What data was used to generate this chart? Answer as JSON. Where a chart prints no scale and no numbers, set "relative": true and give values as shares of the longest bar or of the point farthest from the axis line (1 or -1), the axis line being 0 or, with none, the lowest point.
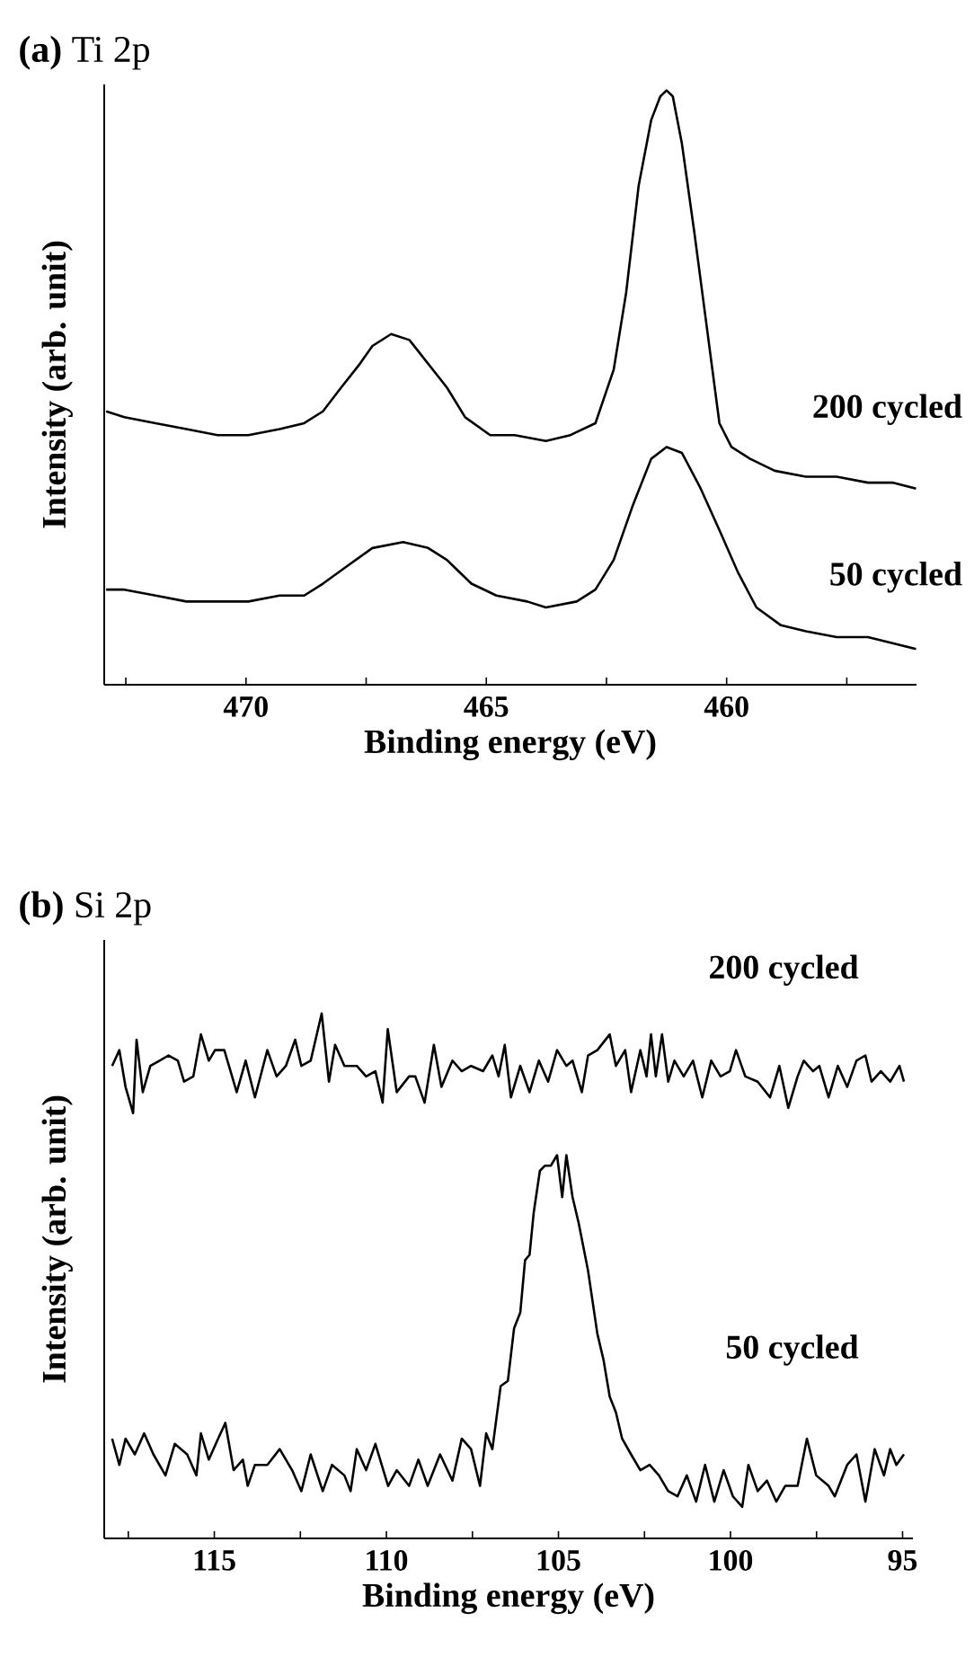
{
  "chart_data": [
    {
      "type": "line",
      "title": "**(a)** Ti 2p",
      "xlabel": "Binding energy (eV)",
      "ylabel": "Intensity (arb. unit)",
      "relative": true,
      "xlim": [
        472.95,
        456.05
      ],
      "xticks": [
        {
          "value": 472.5,
          "label": null
        },
        470,
        {
          "value": 467.5,
          "label": null
        },
        465,
        {
          "value": 462.5,
          "label": null
        },
        460,
        {
          "value": 457.5,
          "label": null
        }
      ],
      "series": [
        {
          "name": "200 cycled",
          "color": "#000000",
          "x": [
            472.91,
            472.53,
            471.88,
            471.24,
            470.59,
            469.95,
            469.3,
            468.79,
            468.4,
            468.02,
            467.63,
            467.37,
            466.98,
            466.6,
            466.21,
            465.82,
            465.44,
            464.92,
            464.41,
            463.76,
            463.25,
            462.73,
            462.35,
            462.09,
            461.83,
            461.57,
            461.38,
            461.25,
            461.12,
            460.93,
            460.67,
            460.41,
            460.15,
            459.9,
            459.51,
            459.0,
            458.35,
            457.71,
            457.06,
            456.55,
            456.06
          ],
          "values": [
            0.46,
            0.45,
            0.44,
            0.43,
            0.42,
            0.42,
            0.43,
            0.44,
            0.46,
            0.5,
            0.54,
            0.57,
            0.59,
            0.58,
            0.54,
            0.5,
            0.45,
            0.42,
            0.42,
            0.41,
            0.42,
            0.44,
            0.53,
            0.66,
            0.84,
            0.95,
            0.99,
            1.0,
            0.99,
            0.91,
            0.76,
            0.6,
            0.44,
            0.4,
            0.38,
            0.36,
            0.35,
            0.35,
            0.34,
            0.34,
            0.33
          ]
        },
        {
          "name": "50 cycled",
          "color": "#000000",
          "x": [
            472.91,
            472.53,
            471.88,
            471.24,
            470.59,
            469.95,
            469.3,
            468.79,
            468.4,
            467.89,
            467.37,
            466.73,
            466.21,
            465.82,
            465.31,
            464.79,
            464.15,
            463.76,
            463.12,
            462.73,
            462.35,
            461.96,
            461.57,
            461.25,
            460.93,
            460.54,
            460.15,
            459.77,
            459.38,
            458.87,
            458.35,
            457.71,
            457.06,
            456.55,
            456.06
          ],
          "values": [
            0.16,
            0.16,
            0.15,
            0.14,
            0.14,
            0.14,
            0.15,
            0.15,
            0.17,
            0.2,
            0.23,
            0.24,
            0.23,
            0.21,
            0.17,
            0.15,
            0.14,
            0.13,
            0.14,
            0.16,
            0.21,
            0.3,
            0.38,
            0.4,
            0.39,
            0.33,
            0.26,
            0.19,
            0.13,
            0.1,
            0.09,
            0.08,
            0.08,
            0.07,
            0.06
          ]
        }
      ]
    },
    {
      "type": "line",
      "title": "**(b)** Si 2p",
      "xlabel": "Binding energy (eV)",
      "ylabel": "Intensity (arb. unit)",
      "relative": true,
      "xlim": [
        118.2,
        94.7
      ],
      "xticks": [
        {
          "value": 117.5,
          "label": null
        },
        115,
        {
          "value": 112.5,
          "label": null
        },
        110,
        {
          "value": 107.5,
          "label": null
        },
        105,
        {
          "value": 102.5,
          "label": null
        },
        100,
        {
          "value": 97.5,
          "label": null
        },
        95
      ],
      "series": [
        {
          "name": "200 cycled",
          "color": "#000000",
          "x": [
            117.97,
            117.76,
            117.58,
            117.36,
            117.26,
            117.08,
            116.86,
            116.59,
            116.33,
            116.06,
            115.88,
            115.61,
            115.39,
            115.16,
            114.98,
            114.71,
            114.35,
            114.09,
            113.82,
            113.46,
            113.19,
            112.92,
            112.65,
            112.47,
            112.2,
            111.88,
            111.67,
            111.49,
            111.22,
            110.86,
            110.59,
            110.32,
            110.11,
            109.96,
            109.7,
            109.34,
            109.16,
            108.89,
            108.62,
            108.4,
            108.08,
            107.81,
            107.54,
            107.19,
            106.92,
            106.74,
            106.56,
            106.38,
            106.11,
            105.84,
            105.57,
            105.3,
            105.04,
            104.77,
            104.59,
            104.32,
            104.14,
            103.87,
            103.51,
            103.33,
            103.06,
            102.89,
            102.62,
            102.44,
            102.31,
            102.17,
            101.99,
            101.81,
            101.63,
            101.36,
            101.09,
            100.82,
            100.56,
            100.29,
            100.02,
            99.84,
            99.57,
            99.21,
            98.85,
            98.58,
            98.32,
            98.05,
            97.87,
            97.6,
            97.42,
            97.15,
            96.88,
            96.61,
            96.34,
            96.08,
            95.9,
            95.63,
            95.36,
            95.09,
            94.96
          ],
          "values": [
            0.9,
            0.93,
            0.86,
            0.81,
            0.95,
            0.85,
            0.9,
            0.91,
            0.92,
            0.91,
            0.87,
            0.88,
            0.96,
            0.91,
            0.93,
            0.93,
            0.85,
            0.91,
            0.84,
            0.93,
            0.88,
            0.9,
            0.95,
            0.9,
            0.91,
            1.0,
            0.87,
            0.94,
            0.9,
            0.9,
            0.88,
            0.89,
            0.83,
            0.97,
            0.85,
            0.88,
            0.88,
            0.83,
            0.94,
            0.86,
            0.91,
            0.89,
            0.9,
            0.89,
            0.92,
            0.88,
            0.94,
            0.84,
            0.9,
            0.85,
            0.91,
            0.87,
            0.93,
            0.9,
            0.91,
            0.85,
            0.92,
            0.93,
            0.96,
            0.9,
            0.93,
            0.85,
            0.93,
            0.88,
            0.96,
            0.88,
            0.96,
            0.87,
            0.91,
            0.88,
            0.91,
            0.84,
            0.91,
            0.88,
            0.89,
            0.93,
            0.88,
            0.87,
            0.84,
            0.9,
            0.82,
            0.88,
            0.91,
            0.89,
            0.9,
            0.84,
            0.9,
            0.86,
            0.91,
            0.92,
            0.87,
            0.89,
            0.87,
            0.9,
            0.87
          ]
        },
        {
          "name": "50 cycled",
          "color": "#000000",
          "x": [
            117.97,
            117.76,
            117.58,
            117.31,
            117.04,
            116.77,
            116.42,
            116.15,
            115.79,
            115.52,
            115.39,
            115.16,
            114.89,
            114.68,
            114.44,
            114.17,
            114.03,
            113.82,
            113.46,
            113.1,
            112.74,
            112.47,
            112.2,
            111.85,
            111.58,
            111.22,
            111.04,
            110.86,
            110.59,
            110.32,
            109.95,
            109.7,
            109.34,
            109.07,
            108.8,
            108.44,
            108.08,
            107.81,
            107.54,
            107.28,
            107.1,
            106.92,
            106.68,
            106.47,
            106.29,
            106.11,
            105.97,
            105.84,
            105.72,
            105.54,
            105.39,
            105.22,
            105.04,
            104.89,
            104.77,
            104.59,
            104.41,
            104.14,
            103.87,
            103.69,
            103.51,
            103.33,
            103.15,
            102.89,
            102.62,
            102.35,
            102.08,
            101.81,
            101.54,
            101.27,
            101.0,
            100.74,
            100.47,
            100.2,
            99.93,
            99.66,
            99.48,
            99.21,
            98.94,
            98.67,
            98.41,
            98.05,
            97.78,
            97.51,
            97.15,
            96.97,
            96.61,
            96.34,
            96.08,
            95.81,
            95.54,
            95.36,
            95.18,
            94.96
          ],
          "values": [
            0.19,
            0.14,
            0.19,
            0.16,
            0.2,
            0.16,
            0.12,
            0.18,
            0.16,
            0.12,
            0.2,
            0.15,
            0.19,
            0.22,
            0.13,
            0.15,
            0.1,
            0.14,
            0.14,
            0.17,
            0.13,
            0.09,
            0.16,
            0.09,
            0.14,
            0.12,
            0.09,
            0.17,
            0.13,
            0.18,
            0.1,
            0.13,
            0.1,
            0.15,
            0.1,
            0.16,
            0.11,
            0.19,
            0.17,
            0.1,
            0.2,
            0.17,
            0.29,
            0.3,
            0.4,
            0.43,
            0.53,
            0.54,
            0.62,
            0.7,
            0.71,
            0.71,
            0.73,
            0.65,
            0.73,
            0.65,
            0.6,
            0.51,
            0.39,
            0.34,
            0.27,
            0.24,
            0.19,
            0.16,
            0.13,
            0.14,
            0.12,
            0.09,
            0.08,
            0.12,
            0.07,
            0.14,
            0.07,
            0.13,
            0.08,
            0.06,
            0.14,
            0.09,
            0.11,
            0.07,
            0.1,
            0.1,
            0.19,
            0.12,
            0.1,
            0.08,
            0.14,
            0.16,
            0.07,
            0.17,
            0.12,
            0.17,
            0.14,
            0.16
          ]
        }
      ]
    }
  ]
}
